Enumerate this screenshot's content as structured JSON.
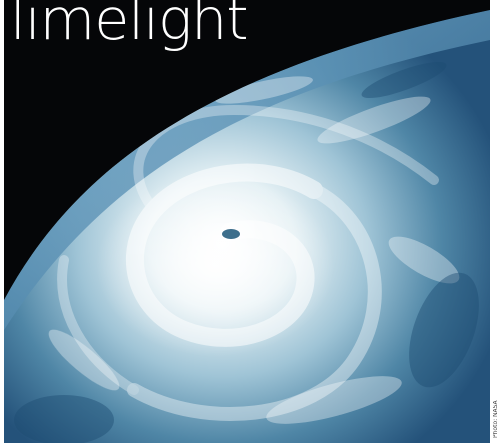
{
  "header": {
    "title": "limelight"
  },
  "image": {
    "subject": "hurricane-satellite-photo"
  },
  "credit": {
    "text": "Photo: NASA"
  }
}
